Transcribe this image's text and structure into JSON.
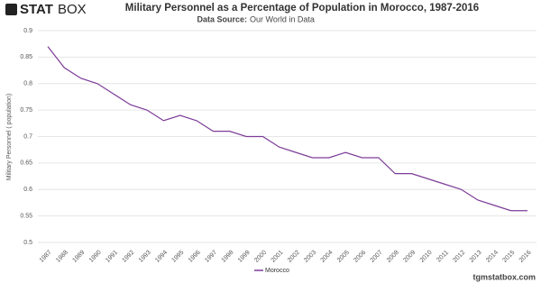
{
  "logo": {
    "bold": "STAT",
    "light": "BOX"
  },
  "footer": "tgmstatbox.com",
  "chart_data": {
    "type": "line",
    "title": "Military Personnel as a Percentage of Population in Morocco, 1987-2016",
    "subtitle_label": "Data Source:",
    "subtitle_source": "Our World in Data",
    "y_label": "Military Personnel ( population)",
    "categories": [
      "1987",
      "1988",
      "1989",
      "1990",
      "1991",
      "1992",
      "1993",
      "1994",
      "1995",
      "1996",
      "1997",
      "1998",
      "1999",
      "2000",
      "2001",
      "2002",
      "2003",
      "2004",
      "2005",
      "2006",
      "2007",
      "2008",
      "2009",
      "2010",
      "2011",
      "2012",
      "2013",
      "2014",
      "2015",
      "2016"
    ],
    "series": [
      {
        "name": "Morocco",
        "color": "#7d3c98",
        "values": [
          0.87,
          0.83,
          0.81,
          0.8,
          0.78,
          0.76,
          0.75,
          0.73,
          0.74,
          0.73,
          0.71,
          0.71,
          0.7,
          0.7,
          0.68,
          0.67,
          0.66,
          0.66,
          0.67,
          0.66,
          0.66,
          0.63,
          0.63,
          0.62,
          0.61,
          0.6,
          0.58,
          0.57,
          0.56,
          0.56
        ]
      }
    ],
    "ylim": [
      0.5,
      0.9
    ],
    "yticks": [
      0.5,
      0.55,
      0.6,
      0.65,
      0.7,
      0.75,
      0.8,
      0.85,
      0.9
    ],
    "grid": true
  }
}
